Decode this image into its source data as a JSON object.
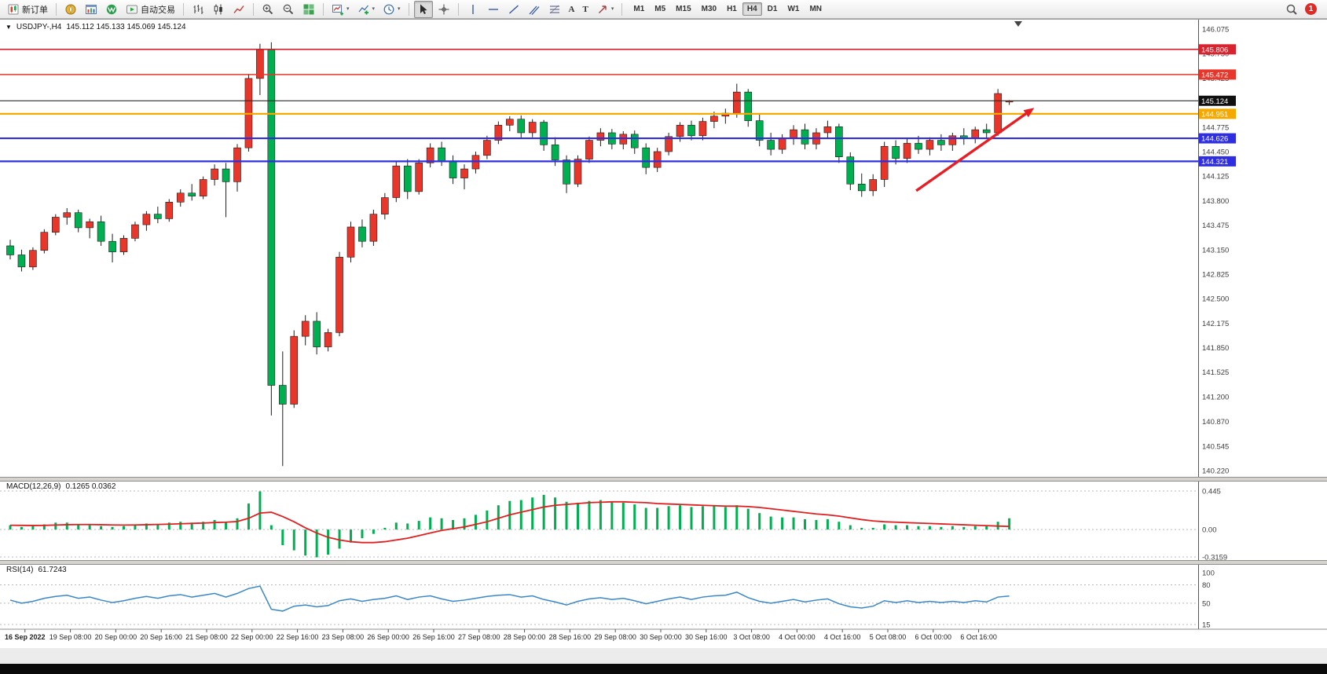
{
  "toolbar": {
    "new_order_label": "新订单",
    "auto_trading_label": "自动交易",
    "timeframes": [
      "M1",
      "M5",
      "M15",
      "M30",
      "H1",
      "H4",
      "D1",
      "W1",
      "MN"
    ],
    "active_timeframe": "H4",
    "notification_badge": "1"
  },
  "icons": {
    "triangle_down": "▼",
    "caret_down": "▾",
    "text_tool": "A",
    "label_tool": "T"
  },
  "chart": {
    "symbol_period": "USDJPY-,H4",
    "ohlc_text": "145.112 145.133 145.069 145.124",
    "macd_label": "MACD(12,26,9)",
    "macd_values": "0.1265 0.0362",
    "rsi_label": "RSI(14)",
    "rsi_value": "61.7243"
  },
  "chart_data": {
    "type": "candlestick",
    "symbol": "USDJPY-",
    "timeframe": "H4",
    "up_color": "#e8362a",
    "down_color": "#00b050",
    "price_range": [
      140.22,
      146.075
    ],
    "price_axis_ticks": [
      "146.075",
      "145.750",
      "145.425",
      "145.100",
      "144.775",
      "144.450",
      "144.125",
      "143.800",
      "143.475",
      "143.150",
      "142.825",
      "142.500",
      "142.175",
      "141.850",
      "141.525",
      "141.200",
      "140.870",
      "140.545",
      "140.220"
    ],
    "time_labels": [
      "16 Sep 2022",
      "19 Sep 08:00",
      "20 Sep 00:00",
      "20 Sep 16:00",
      "21 Sep 08:00",
      "22 Sep 00:00",
      "22 Sep 16:00",
      "23 Sep 08:00",
      "26 Sep 00:00",
      "26 Sep 16:00",
      "27 Sep 08:00",
      "28 Sep 00:00",
      "28 Sep 16:00",
      "29 Sep 08:00",
      "30 Sep 00:00",
      "30 Sep 16:00",
      "3 Oct 08:00",
      "4 Oct 00:00",
      "4 Oct 16:00",
      "5 Oct 08:00",
      "6 Oct 00:00",
      "6 Oct 16:00"
    ],
    "candles": [
      [
        143.2,
        143.28,
        143.02,
        143.08
      ],
      [
        143.08,
        143.15,
        142.86,
        142.92
      ],
      [
        142.92,
        143.18,
        142.88,
        143.14
      ],
      [
        143.14,
        143.42,
        143.1,
        143.38
      ],
      [
        143.38,
        143.62,
        143.34,
        143.58
      ],
      [
        143.58,
        143.7,
        143.48,
        143.64
      ],
      [
        143.64,
        143.68,
        143.38,
        143.44
      ],
      [
        143.44,
        143.56,
        143.3,
        143.52
      ],
      [
        143.52,
        143.6,
        143.2,
        143.26
      ],
      [
        143.26,
        143.36,
        142.98,
        143.12
      ],
      [
        143.12,
        143.34,
        143.08,
        143.3
      ],
      [
        143.3,
        143.52,
        143.26,
        143.48
      ],
      [
        143.48,
        143.66,
        143.4,
        143.62
      ],
      [
        143.62,
        143.72,
        143.5,
        143.56
      ],
      [
        143.56,
        143.82,
        143.52,
        143.78
      ],
      [
        143.78,
        143.95,
        143.72,
        143.9
      ],
      [
        143.9,
        144.02,
        143.8,
        143.86
      ],
      [
        143.86,
        144.12,
        143.82,
        144.08
      ],
      [
        144.08,
        144.28,
        144.0,
        144.22
      ],
      [
        144.22,
        144.3,
        143.58,
        144.05
      ],
      [
        144.05,
        144.55,
        143.92,
        144.5
      ],
      [
        144.5,
        145.48,
        144.45,
        145.42
      ],
      [
        145.42,
        145.88,
        145.2,
        145.8
      ],
      [
        145.8,
        145.9,
        140.95,
        141.35
      ],
      [
        141.35,
        141.8,
        140.28,
        141.1
      ],
      [
        141.1,
        142.08,
        141.05,
        142.0
      ],
      [
        142.0,
        142.28,
        141.88,
        142.2
      ],
      [
        142.2,
        142.32,
        141.76,
        141.86
      ],
      [
        141.86,
        142.1,
        141.8,
        142.05
      ],
      [
        142.05,
        143.12,
        142.0,
        143.05
      ],
      [
        143.05,
        143.52,
        142.98,
        143.45
      ],
      [
        143.45,
        143.55,
        143.18,
        143.26
      ],
      [
        143.26,
        143.68,
        143.2,
        143.62
      ],
      [
        143.62,
        143.9,
        143.55,
        143.84
      ],
      [
        143.84,
        144.32,
        143.78,
        144.26
      ],
      [
        144.26,
        144.35,
        143.82,
        143.92
      ],
      [
        143.92,
        144.35,
        143.88,
        144.3
      ],
      [
        144.3,
        144.56,
        144.24,
        144.5
      ],
      [
        144.5,
        144.58,
        144.26,
        144.32
      ],
      [
        144.32,
        144.4,
        144.02,
        144.1
      ],
      [
        144.1,
        144.28,
        143.95,
        144.22
      ],
      [
        144.22,
        144.45,
        144.16,
        144.4
      ],
      [
        144.4,
        144.66,
        144.35,
        144.6
      ],
      [
        144.6,
        144.85,
        144.55,
        144.8
      ],
      [
        144.8,
        144.92,
        144.72,
        144.88
      ],
      [
        144.88,
        144.93,
        144.62,
        144.7
      ],
      [
        144.7,
        144.88,
        144.64,
        144.84
      ],
      [
        144.84,
        144.87,
        144.46,
        144.54
      ],
      [
        144.54,
        144.64,
        144.26,
        144.34
      ],
      [
        144.34,
        144.4,
        143.9,
        144.02
      ],
      [
        144.02,
        144.4,
        143.98,
        144.35
      ],
      [
        144.35,
        144.65,
        144.3,
        144.6
      ],
      [
        144.6,
        144.76,
        144.52,
        144.7
      ],
      [
        144.7,
        144.75,
        144.48,
        144.55
      ],
      [
        144.55,
        144.72,
        144.48,
        144.68
      ],
      [
        144.68,
        144.73,
        144.42,
        144.5
      ],
      [
        144.5,
        144.56,
        144.15,
        144.24
      ],
      [
        144.24,
        144.5,
        144.18,
        144.45
      ],
      [
        144.45,
        144.7,
        144.4,
        144.65
      ],
      [
        144.65,
        144.84,
        144.58,
        144.8
      ],
      [
        144.8,
        144.86,
        144.6,
        144.66
      ],
      [
        144.66,
        144.9,
        144.6,
        144.85
      ],
      [
        144.85,
        144.98,
        144.76,
        144.92
      ],
      [
        144.92,
        145.02,
        144.82,
        144.96
      ],
      [
        144.96,
        145.35,
        144.9,
        145.24
      ],
      [
        145.24,
        145.28,
        144.78,
        144.86
      ],
      [
        144.86,
        144.96,
        144.52,
        144.6
      ],
      [
        144.6,
        144.7,
        144.4,
        144.48
      ],
      [
        144.48,
        144.68,
        144.42,
        144.62
      ],
      [
        144.62,
        144.8,
        144.54,
        144.74
      ],
      [
        144.74,
        144.82,
        144.48,
        144.55
      ],
      [
        144.55,
        144.76,
        144.48,
        144.7
      ],
      [
        144.7,
        144.86,
        144.62,
        144.78
      ],
      [
        144.78,
        144.82,
        144.3,
        144.38
      ],
      [
        144.38,
        144.44,
        143.94,
        144.02
      ],
      [
        144.02,
        144.16,
        143.85,
        143.93
      ],
      [
        143.93,
        144.15,
        143.86,
        144.08
      ],
      [
        144.08,
        144.58,
        143.98,
        144.52
      ],
      [
        144.52,
        144.6,
        144.28,
        144.36
      ],
      [
        144.36,
        144.62,
        144.3,
        144.56
      ],
      [
        144.56,
        144.66,
        144.42,
        144.48
      ],
      [
        144.48,
        144.64,
        144.4,
        144.6
      ],
      [
        144.6,
        144.68,
        144.46,
        144.54
      ],
      [
        144.54,
        144.7,
        144.46,
        144.66
      ],
      [
        144.66,
        144.76,
        144.54,
        144.62
      ],
      [
        144.62,
        144.78,
        144.56,
        144.74
      ],
      [
        144.74,
        144.82,
        144.62,
        144.7
      ],
      [
        144.7,
        145.28,
        144.66,
        145.22
      ],
      [
        145.112,
        145.133,
        145.069,
        145.124
      ]
    ],
    "levels": [
      {
        "price": 145.806,
        "label": "145.806",
        "color": "#d8242e",
        "width": 1.6
      },
      {
        "price": 145.472,
        "label": "145.472",
        "color": "#e8362a",
        "width": 1.6
      },
      {
        "price": 144.951,
        "label": "144.951",
        "color": "#f5a800",
        "width": 2.2
      },
      {
        "price": 144.626,
        "label": "144.626",
        "color": "#2e2ee0",
        "width": 2.2
      },
      {
        "price": 144.321,
        "label": "144.321",
        "color": "#2e2ee0",
        "width": 2.2
      }
    ],
    "current_price": {
      "value": 145.124,
      "label": "145.124",
      "line_color": "#2a2a2a",
      "tag_bg": "#101010"
    },
    "arrow": {
      "from_index": 79.8,
      "from_price": 143.93,
      "to_index": 90.2,
      "to_price": 145.03,
      "color": "#e81e25"
    },
    "macd": {
      "label": "MACD(12,26,9)",
      "hist_color": "#00b050",
      "signal_color": "#e02020",
      "range": [
        -0.3159,
        0.445
      ],
      "axis_labels": [
        {
          "v": 0.445,
          "t": "0.445"
        },
        {
          "v": 0,
          "t": "0.00"
        },
        {
          "v": -0.3159,
          "t": "-0.3159"
        }
      ],
      "hist": [
        0.05,
        0.03,
        0.04,
        0.06,
        0.08,
        0.08,
        0.06,
        0.05,
        0.04,
        0.03,
        0.04,
        0.06,
        0.07,
        0.06,
        0.08,
        0.09,
        0.08,
        0.09,
        0.11,
        0.09,
        0.13,
        0.3,
        0.44,
        0.05,
        -0.18,
        -0.24,
        -0.3,
        -0.32,
        -0.29,
        -0.22,
        -0.15,
        -0.1,
        -0.05,
        0.02,
        0.08,
        0.07,
        0.1,
        0.14,
        0.13,
        0.11,
        0.13,
        0.17,
        0.22,
        0.28,
        0.33,
        0.34,
        0.37,
        0.4,
        0.37,
        0.32,
        0.31,
        0.33,
        0.34,
        0.32,
        0.31,
        0.29,
        0.25,
        0.25,
        0.27,
        0.28,
        0.26,
        0.27,
        0.27,
        0.26,
        0.28,
        0.24,
        0.19,
        0.15,
        0.14,
        0.14,
        0.12,
        0.11,
        0.12,
        0.09,
        0.05,
        0.02,
        0.02,
        0.06,
        0.05,
        0.05,
        0.04,
        0.04,
        0.03,
        0.04,
        0.03,
        0.04,
        0.04,
        0.09,
        0.13
      ],
      "signal": [
        0.05,
        0.048,
        0.047,
        0.048,
        0.052,
        0.056,
        0.058,
        0.058,
        0.056,
        0.053,
        0.052,
        0.053,
        0.056,
        0.059,
        0.062,
        0.067,
        0.071,
        0.075,
        0.081,
        0.085,
        0.093,
        0.13,
        0.19,
        0.2,
        0.15,
        0.09,
        0.02,
        -0.04,
        -0.09,
        -0.12,
        -0.14,
        -0.15,
        -0.15,
        -0.14,
        -0.12,
        -0.1,
        -0.07,
        -0.04,
        -0.01,
        0.01,
        0.03,
        0.06,
        0.09,
        0.13,
        0.17,
        0.2,
        0.23,
        0.26,
        0.28,
        0.29,
        0.3,
        0.31,
        0.315,
        0.32,
        0.32,
        0.315,
        0.31,
        0.3,
        0.295,
        0.29,
        0.285,
        0.28,
        0.275,
        0.27,
        0.27,
        0.265,
        0.255,
        0.24,
        0.225,
        0.21,
        0.195,
        0.18,
        0.17,
        0.155,
        0.135,
        0.115,
        0.1,
        0.09,
        0.085,
        0.08,
        0.075,
        0.07,
        0.065,
        0.06,
        0.055,
        0.05,
        0.045,
        0.04,
        0.036
      ]
    },
    "rsi": {
      "label": "RSI(14)",
      "color": "#3a87c8",
      "range": [
        15,
        100
      ],
      "levels": [
        80,
        50,
        15
      ],
      "axis_labels": [
        {
          "v": 100,
          "t": "100"
        },
        {
          "v": 80,
          "t": "80"
        },
        {
          "v": 50,
          "t": "50"
        },
        {
          "v": 15,
          "t": "15"
        }
      ],
      "values": [
        55,
        50,
        53,
        58,
        61,
        63,
        58,
        60,
        55,
        51,
        54,
        58,
        61,
        58,
        62,
        64,
        60,
        63,
        66,
        60,
        66,
        74,
        78,
        40,
        37,
        45,
        47,
        44,
        46,
        54,
        57,
        53,
        56,
        58,
        62,
        56,
        60,
        62,
        57,
        53,
        55,
        58,
        61,
        63,
        64,
        60,
        62,
        56,
        52,
        47,
        53,
        57,
        59,
        56,
        58,
        54,
        49,
        53,
        57,
        60,
        56,
        60,
        62,
        63,
        68,
        59,
        53,
        50,
        53,
        56,
        52,
        55,
        57,
        49,
        44,
        42,
        45,
        54,
        51,
        54,
        51,
        53,
        51,
        53,
        51,
        54,
        52,
        60,
        61.7
      ]
    }
  }
}
